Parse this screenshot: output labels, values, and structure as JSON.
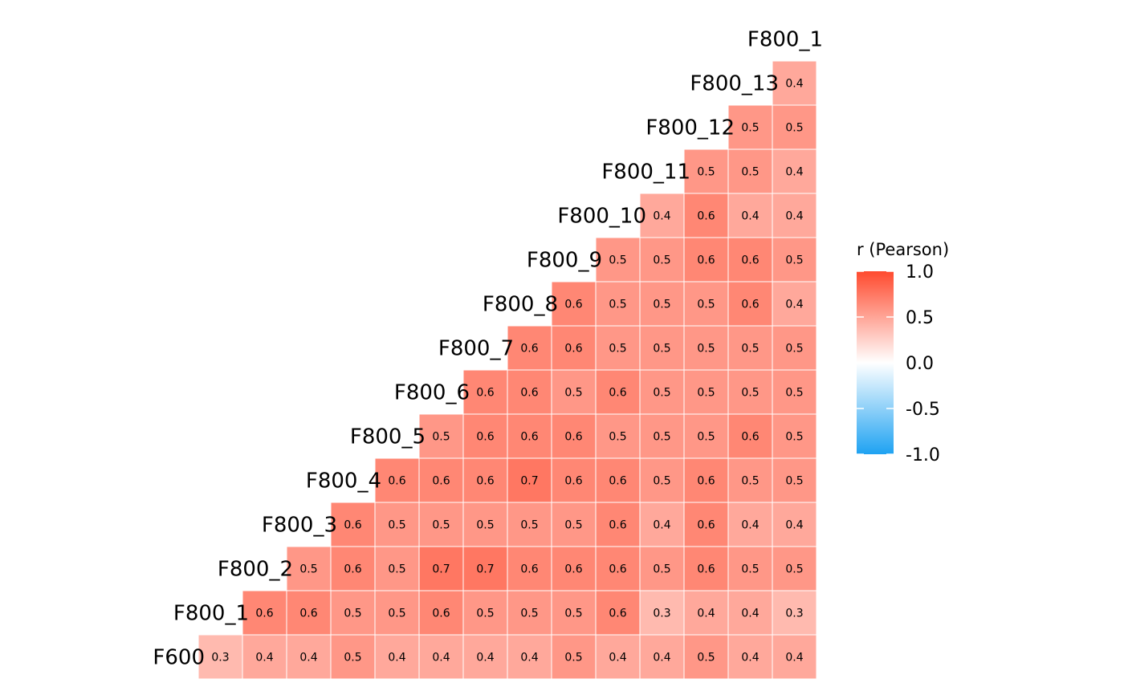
{
  "chart_data": {
    "type": "heatmap",
    "title": "",
    "xlabel": "",
    "ylabel": "",
    "variables": [
      "F600",
      "F800_1",
      "F800_2",
      "F800_3",
      "F800_4",
      "F800_5",
      "F800_6",
      "F800_7",
      "F800_8",
      "F800_9",
      "F800_10",
      "F800_11",
      "F800_12",
      "F800_13",
      "F800_1"
    ],
    "rows": [
      [
        0.3,
        0.4,
        0.4,
        0.5,
        0.4,
        0.4,
        0.4,
        0.4,
        0.5,
        0.4,
        0.4,
        0.5,
        0.4,
        0.4
      ],
      [
        0.6,
        0.6,
        0.5,
        0.5,
        0.6,
        0.5,
        0.5,
        0.5,
        0.6,
        0.3,
        0.4,
        0.4,
        0.3
      ],
      [
        0.5,
        0.6,
        0.5,
        0.7,
        0.7,
        0.6,
        0.6,
        0.6,
        0.5,
        0.6,
        0.5,
        0.5
      ],
      [
        0.6,
        0.5,
        0.5,
        0.5,
        0.5,
        0.5,
        0.6,
        0.4,
        0.6,
        0.4,
        0.4
      ],
      [
        0.6,
        0.6,
        0.6,
        0.7,
        0.6,
        0.6,
        0.5,
        0.6,
        0.5,
        0.5
      ],
      [
        0.5,
        0.6,
        0.6,
        0.6,
        0.5,
        0.5,
        0.5,
        0.6,
        0.5
      ],
      [
        0.6,
        0.6,
        0.5,
        0.6,
        0.5,
        0.5,
        0.5,
        0.5
      ],
      [
        0.6,
        0.6,
        0.5,
        0.5,
        0.5,
        0.5,
        0.5
      ],
      [
        0.6,
        0.5,
        0.5,
        0.5,
        0.6,
        0.4
      ],
      [
        0.5,
        0.5,
        0.6,
        0.6,
        0.5
      ],
      [
        0.4,
        0.6,
        0.4,
        0.4
      ],
      [
        0.5,
        0.5,
        0.4
      ],
      [
        0.5,
        0.5
      ],
      [
        0.4
      ]
    ],
    "legend": {
      "title": "r (Pearson)",
      "ticks": [
        "1.0",
        "0.5",
        "0.0",
        "-0.5",
        "-1.0"
      ],
      "range": [
        -1,
        1
      ],
      "placement": "right"
    },
    "colors": {
      "high": "#ff4a2e",
      "mid": "#ffffff",
      "low": "#1ea2f2",
      "cell_border": "#ffffff",
      "text": "#000000"
    },
    "grid": false
  }
}
